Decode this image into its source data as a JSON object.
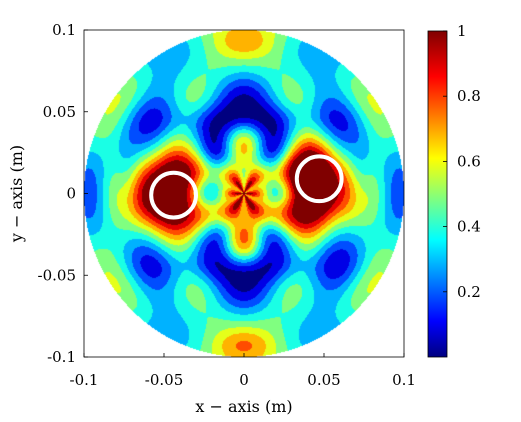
{
  "chart_data": {
    "type": "heatmap",
    "title": "",
    "xlabel": "x − axis (m)",
    "ylabel": "y − axis (m)",
    "xlim": [
      -0.1,
      0.1
    ],
    "ylim": [
      -0.1,
      0.1
    ],
    "x_ticks": [
      -0.1,
      -0.05,
      0,
      0.05,
      0.1
    ],
    "x_tick_labels": [
      "-0.1",
      "-0.05",
      "0",
      "0.05",
      "0.1"
    ],
    "y_ticks": [
      -0.1,
      -0.05,
      0,
      0.05,
      0.1
    ],
    "y_tick_labels": [
      "-0.1",
      "-0.05",
      "0",
      "0.05",
      "0.1"
    ],
    "colorbar": {
      "colormap": "jet",
      "range": [
        0,
        1
      ],
      "ticks": [
        0.2,
        0.4,
        0.6,
        0.8,
        1
      ],
      "tick_labels": [
        "0.2",
        "0.4",
        "0.6",
        "0.8",
        "1"
      ]
    },
    "grid": false,
    "domain_shape": "circle",
    "domain_radius": 0.1,
    "peaks": [
      {
        "x": -0.045,
        "y": 0.005,
        "value": 0.9
      },
      {
        "x": 0.045,
        "y": 0.01,
        "value": 1.0
      },
      {
        "x": 0.0,
        "y": -0.005,
        "value": 0.75
      },
      {
        "x": -0.05,
        "y": -0.005,
        "value": 0.82
      },
      {
        "x": 0.042,
        "y": 0.0,
        "value": 0.9
      }
    ],
    "markers": [
      {
        "shape": "circle",
        "x": -0.044,
        "y": -0.001,
        "radius": 0.014,
        "color": "#ffffff"
      },
      {
        "shape": "circle",
        "x": 0.047,
        "y": 0.009,
        "radius": 0.014,
        "color": "#ffffff"
      }
    ]
  }
}
